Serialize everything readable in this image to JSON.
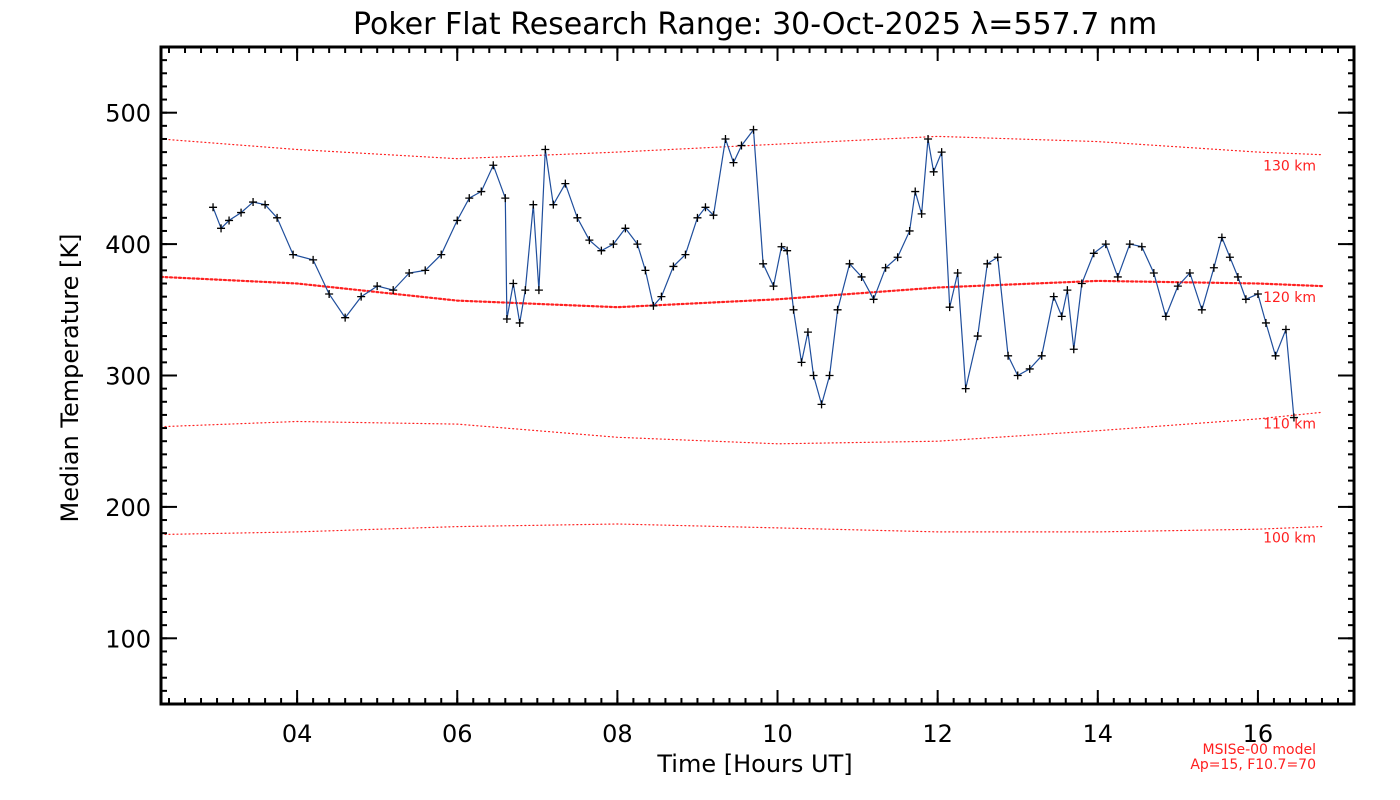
{
  "chart_data": {
    "type": "line",
    "title": "Poker Flat Research Range: 30-Oct-2025 λ=557.7 nm",
    "xlabel": "Time [Hours UT]",
    "ylabel": "Median Temperature [K]",
    "xlim": [
      2.3,
      17.2
    ],
    "ylim": [
      50,
      550
    ],
    "x_ticks": [
      4,
      6,
      8,
      10,
      12,
      14,
      16
    ],
    "x_tick_labels": [
      "04",
      "06",
      "08",
      "10",
      "12",
      "14",
      "16"
    ],
    "y_ticks": [
      100,
      200,
      300,
      400,
      500
    ],
    "y_tick_labels": [
      "100",
      "200",
      "300",
      "400",
      "500"
    ],
    "series": [
      {
        "name": "Median Temperature",
        "color": "#1f4e9c",
        "marker": "plus",
        "x": [
          2.95,
          3.05,
          3.15,
          3.3,
          3.45,
          3.6,
          3.75,
          3.95,
          4.2,
          4.4,
          4.6,
          4.8,
          5.0,
          5.2,
          5.4,
          5.6,
          5.8,
          6.0,
          6.15,
          6.3,
          6.45,
          6.6,
          6.62,
          6.7,
          6.78,
          6.85,
          6.95,
          7.02,
          7.1,
          7.2,
          7.35,
          7.5,
          7.65,
          7.8,
          7.95,
          8.1,
          8.25,
          8.35,
          8.45,
          8.55,
          8.7,
          8.85,
          9.0,
          9.1,
          9.2,
          9.35,
          9.45,
          9.55,
          9.7,
          9.82,
          9.95,
          10.05,
          10.12,
          10.2,
          10.3,
          10.38,
          10.45,
          10.55,
          10.65,
          10.75,
          10.9,
          11.05,
          11.2,
          11.35,
          11.5,
          11.65,
          11.72,
          11.8,
          11.88,
          11.95,
          12.05,
          12.15,
          12.25,
          12.35,
          12.5,
          12.62,
          12.75,
          12.88,
          13.0,
          13.15,
          13.3,
          13.45,
          13.55,
          13.62,
          13.7,
          13.8,
          13.95,
          14.1,
          14.25,
          14.4,
          14.55,
          14.7,
          14.85,
          15.0,
          15.15,
          15.3,
          15.45,
          15.55,
          15.65,
          15.75,
          15.85,
          16.0,
          16.1,
          16.22,
          16.35,
          16.45
        ],
        "y": [
          428,
          412,
          418,
          424,
          432,
          430,
          420,
          392,
          388,
          362,
          344,
          360,
          368,
          365,
          378,
          380,
          392,
          418,
          435,
          440,
          460,
          435,
          343,
          370,
          340,
          365,
          430,
          365,
          472,
          430,
          446,
          420,
          403,
          395,
          400,
          412,
          400,
          380,
          353,
          360,
          383,
          392,
          420,
          428,
          422,
          480,
          462,
          475,
          487,
          385,
          368,
          398,
          395,
          350,
          310,
          333,
          300,
          278,
          300,
          350,
          385,
          375,
          358,
          382,
          390,
          410,
          440,
          423,
          480,
          455,
          470,
          352,
          378,
          290,
          330,
          385,
          390,
          315,
          300,
          305,
          315,
          360,
          345,
          365,
          320,
          370,
          393,
          400,
          375,
          400,
          398,
          378,
          345,
          368,
          378,
          350,
          382,
          405,
          390,
          375,
          358,
          362,
          340,
          315,
          335,
          268
        ]
      }
    ],
    "model_curves": [
      {
        "name": "130 km",
        "label": "130 km",
        "style": "thin",
        "x": [
          2.3,
          4.0,
          6.0,
          8.0,
          10.0,
          12.0,
          14.0,
          16.0,
          16.8
        ],
        "y": [
          480,
          472,
          465,
          470,
          476,
          482,
          478,
          470,
          468
        ]
      },
      {
        "name": "120 km",
        "label": "120 km",
        "style": "thick",
        "x": [
          2.3,
          4.0,
          6.0,
          8.0,
          10.0,
          12.0,
          14.0,
          16.0,
          16.8
        ],
        "y": [
          375,
          370,
          357,
          352,
          358,
          367,
          372,
          370,
          368
        ]
      },
      {
        "name": "110 km",
        "label": "110 km",
        "style": "thin",
        "x": [
          2.3,
          4.0,
          6.0,
          8.0,
          10.0,
          12.0,
          14.0,
          16.0,
          16.8
        ],
        "y": [
          261,
          265,
          263,
          253,
          248,
          250,
          258,
          267,
          272
        ]
      },
      {
        "name": "100 km",
        "label": "100 km",
        "style": "thin",
        "x": [
          2.3,
          4.0,
          6.0,
          8.0,
          10.0,
          12.0,
          14.0,
          16.0,
          16.8
        ],
        "y": [
          179,
          181,
          185,
          187,
          184,
          181,
          181,
          183,
          185
        ]
      }
    ],
    "model_color": "#ff2020",
    "annotations": [
      "MSISe-00 model",
      "Ap=15, F10.7=70"
    ]
  }
}
